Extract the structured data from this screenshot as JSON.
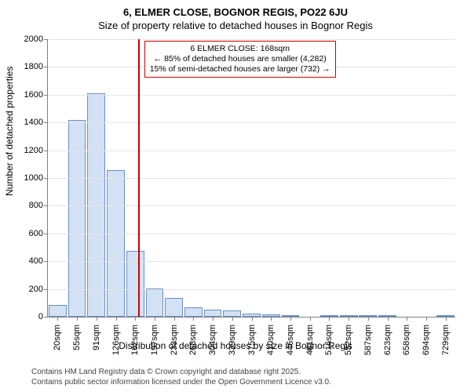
{
  "title": "6, ELMER CLOSE, BOGNOR REGIS, PO22 6JU",
  "subtitle": "Size of property relative to detached houses in Bognor Regis",
  "ylabel": "Number of detached properties",
  "xlabel": "Distribution of detached houses by size in Bognor Regis",
  "chart": {
    "type": "histogram",
    "ylim": [
      0,
      2000
    ],
    "ytick_step": 200,
    "bar_fill": "#d3e1f4",
    "bar_stroke": "#6a8fc7",
    "grid_color": "#e5e5e5",
    "axis_color": "#808080",
    "background": "#ffffff",
    "bar_width_ratio": 0.92,
    "categories": [
      "20sqm",
      "55sqm",
      "91sqm",
      "126sqm",
      "162sqm",
      "197sqm",
      "233sqm",
      "268sqm",
      "304sqm",
      "339sqm",
      "375sqm",
      "410sqm",
      "446sqm",
      "481sqm",
      "516sqm",
      "552sqm",
      "587sqm",
      "623sqm",
      "658sqm",
      "694sqm",
      "729sqm"
    ],
    "values": [
      85,
      1420,
      1610,
      1055,
      475,
      205,
      135,
      70,
      50,
      45,
      25,
      15,
      10,
      0,
      5,
      5,
      5,
      5,
      0,
      0,
      5
    ],
    "title_fontsize": 13,
    "label_fontsize": 12,
    "tick_fontsize": 11
  },
  "marker": {
    "color": "#cc0000",
    "position_category_index": 4.15
  },
  "annotation": {
    "border_color": "#cc0000",
    "line1": "6 ELMER CLOSE: 168sqm",
    "line2": "← 85% of detached houses are smaller (4,282)",
    "line3": "15% of semi-detached houses are larger (732) →"
  },
  "footer": {
    "line1": "Contains HM Land Registry data © Crown copyright and database right 2025.",
    "line2": "Contains public sector information licensed under the Open Government Licence v3.0."
  }
}
